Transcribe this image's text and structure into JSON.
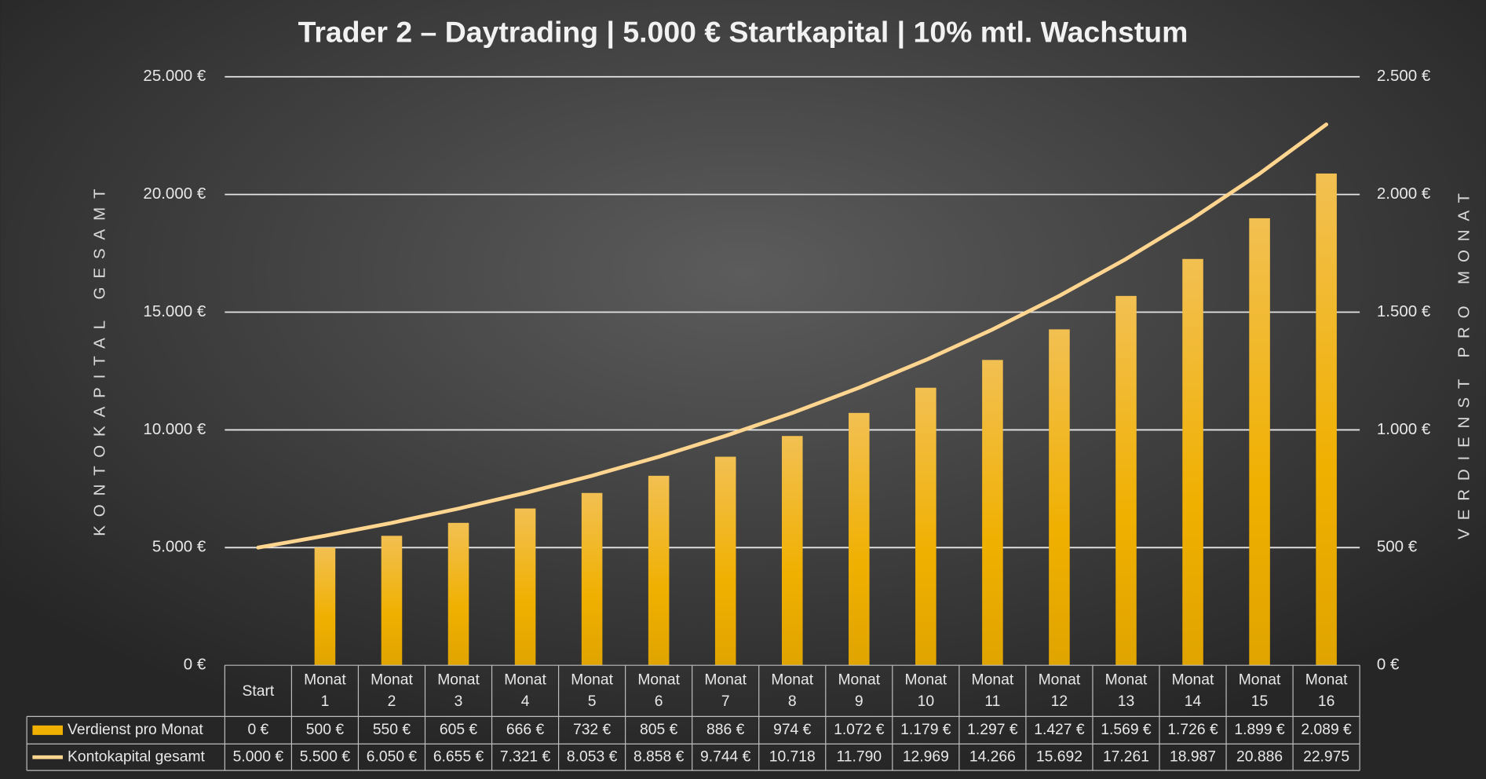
{
  "chart_data": {
    "type": "bar",
    "title": "Trader 2 – Daytrading | 5.000 € Startkapital | 10% mtl. Wachstum",
    "y_label": "KONTOKAPITAL GESAMT",
    "y2_label": "VERDIENST PRO MONAT",
    "categories": [
      "Start",
      "Monat 1",
      "Monat 2",
      "Monat 3",
      "Monat 4",
      "Monat 5",
      "Monat 6",
      "Monat 7",
      "Monat 8",
      "Monat 9",
      "Monat 10",
      "Monat 11",
      "Monat 12",
      "Monat 13",
      "Monat 14",
      "Monat 15",
      "Monat 16"
    ],
    "series": [
      {
        "name": "Verdienst pro Monat",
        "type": "bar",
        "axis": "y2",
        "color": "#f0b000",
        "values": [
          0,
          500,
          550,
          605,
          666,
          732,
          805,
          886,
          974,
          1072,
          1179,
          1297,
          1427,
          1569,
          1726,
          1899,
          2089
        ],
        "value_labels": [
          "0 €",
          "500 €",
          "550 €",
          "605 €",
          "666 €",
          "732 €",
          "805 €",
          "886 €",
          "974 €",
          "1.072 €",
          "1.179 €",
          "1.297 €",
          "1.427 €",
          "1.569 €",
          "1.726 €",
          "1.899 €",
          "2.089 €"
        ]
      },
      {
        "name": "Kontokapital gesamt",
        "type": "line",
        "axis": "y",
        "color": "#ffd58f",
        "values": [
          5000,
          5500,
          6050,
          6655,
          7321,
          8053,
          8858,
          9744,
          10718,
          11790,
          12969,
          14266,
          15692,
          17261,
          18987,
          20886,
          22975
        ],
        "value_labels": [
          "5.000 €",
          "5.500 €",
          "6.050 €",
          "6.655 €",
          "7.321 €",
          "8.053 €",
          "8.858 €",
          "9.744 €",
          "10.718",
          "11.790",
          "12.969",
          "14.266",
          "15.692",
          "17.261",
          "18.987",
          "20.886",
          "22.975"
        ]
      }
    ],
    "ylim": [
      0,
      25000
    ],
    "yticks": [
      {
        "value": 0,
        "label": "0 €"
      },
      {
        "value": 5000,
        "label": "5.000 €"
      },
      {
        "value": 10000,
        "label": "10.000 €"
      },
      {
        "value": 15000,
        "label": "15.000 €"
      },
      {
        "value": 20000,
        "label": "20.000 €"
      },
      {
        "value": 25000,
        "label": "25.000 €"
      }
    ],
    "y2lim": [
      0,
      2500
    ],
    "y2ticks": [
      {
        "value": 0,
        "label": "0 €"
      },
      {
        "value": 500,
        "label": "500 €"
      },
      {
        "value": 1000,
        "label": "1.000 €"
      },
      {
        "value": 1500,
        "label": "1.500 €"
      },
      {
        "value": 2000,
        "label": "2.000 €"
      },
      {
        "value": 2500,
        "label": "2.500 €"
      }
    ],
    "grid": true
  }
}
